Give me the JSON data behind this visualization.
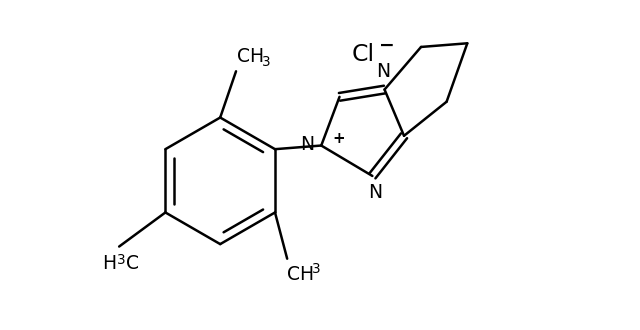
{
  "background": "#ffffff",
  "line_color": "#000000",
  "lw": 1.8,
  "fs": 13.5,
  "xlim": [
    -2.0,
    2.2
  ],
  "ylim": [
    -1.4,
    1.3
  ]
}
